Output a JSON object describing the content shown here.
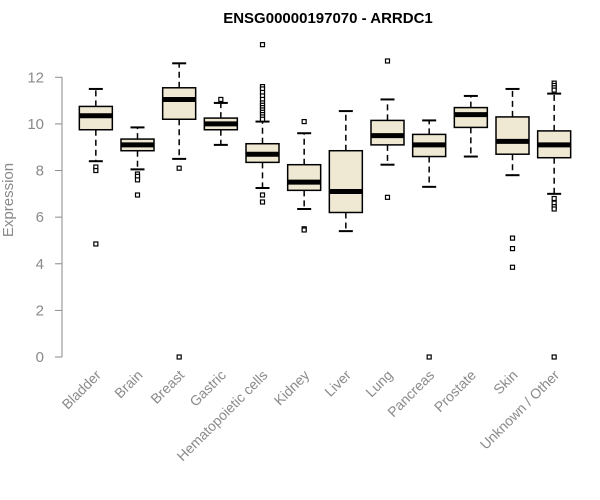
{
  "chart_data": {
    "type": "boxplot",
    "title": "ENSG00000197070 - ARRDC1",
    "ylabel": "Expression",
    "xlabel": "",
    "ylim": [
      0,
      13.6
    ],
    "yticks": [
      0,
      2,
      4,
      6,
      8,
      10,
      12
    ],
    "box_fill": "#efe9d3",
    "box_stroke": "#000000",
    "axis_color": "#8a8a8a",
    "categories": [
      "Bladder",
      "Brain",
      "Breast",
      "Gastric",
      "Hematopoietic cells",
      "Kidney",
      "Liver",
      "Lung",
      "Pancreas",
      "Prostate",
      "Skin",
      "Unknown / Other"
    ],
    "boxes": [
      {
        "name": "Bladder",
        "whisker_low": 8.4,
        "q1": 9.75,
        "median": 10.35,
        "q3": 10.75,
        "whisker_high": 11.5,
        "outliers": [
          8.15,
          8.0,
          4.85
        ]
      },
      {
        "name": "Brain",
        "whisker_low": 8.05,
        "q1": 8.85,
        "median": 9.1,
        "q3": 9.35,
        "whisker_high": 9.85,
        "outliers": [
          7.85,
          7.75,
          7.6,
          6.95
        ]
      },
      {
        "name": "Breast",
        "whisker_low": 8.5,
        "q1": 10.2,
        "median": 11.05,
        "q3": 11.55,
        "whisker_high": 12.6,
        "outliers": [
          8.1,
          0.0
        ]
      },
      {
        "name": "Gastric",
        "whisker_low": 9.1,
        "q1": 9.75,
        "median": 10.0,
        "q3": 10.25,
        "whisker_high": 10.9,
        "outliers": [
          11.05
        ]
      },
      {
        "name": "Hematopoietic cells",
        "whisker_low": 7.25,
        "q1": 8.35,
        "median": 8.7,
        "q3": 9.15,
        "whisker_high": 10.1,
        "outliers": [
          13.4,
          11.6,
          11.5,
          11.35,
          11.2,
          11.05,
          10.9,
          10.8,
          10.7,
          10.6,
          10.5,
          10.4,
          10.3,
          10.2,
          6.95,
          6.65
        ]
      },
      {
        "name": "Kidney",
        "whisker_low": 6.35,
        "q1": 7.15,
        "median": 7.5,
        "q3": 8.25,
        "whisker_high": 9.6,
        "outliers": [
          10.1,
          5.5,
          5.45
        ]
      },
      {
        "name": "Liver",
        "whisker_low": 5.4,
        "q1": 6.2,
        "median": 7.1,
        "q3": 8.85,
        "whisker_high": 10.55,
        "outliers": []
      },
      {
        "name": "Lung",
        "whisker_low": 8.25,
        "q1": 9.1,
        "median": 9.5,
        "q3": 10.15,
        "whisker_high": 11.05,
        "outliers": [
          12.7,
          6.85
        ]
      },
      {
        "name": "Pancreas",
        "whisker_low": 7.3,
        "q1": 8.6,
        "median": 9.1,
        "q3": 9.55,
        "whisker_high": 10.15,
        "outliers": [
          0.0
        ]
      },
      {
        "name": "Prostate",
        "whisker_low": 8.6,
        "q1": 9.85,
        "median": 10.4,
        "q3": 10.7,
        "whisker_high": 11.2,
        "outliers": []
      },
      {
        "name": "Skin",
        "whisker_low": 7.8,
        "q1": 8.7,
        "median": 9.25,
        "q3": 10.3,
        "whisker_high": 11.5,
        "outliers": [
          5.1,
          4.65,
          3.85
        ]
      },
      {
        "name": "Unknown / Other",
        "whisker_low": 7.0,
        "q1": 8.55,
        "median": 9.1,
        "q3": 9.7,
        "whisker_high": 11.3,
        "outliers": [
          11.75,
          11.65,
          11.55,
          11.45,
          6.8,
          6.6,
          6.45,
          6.35,
          0.0
        ]
      }
    ]
  }
}
